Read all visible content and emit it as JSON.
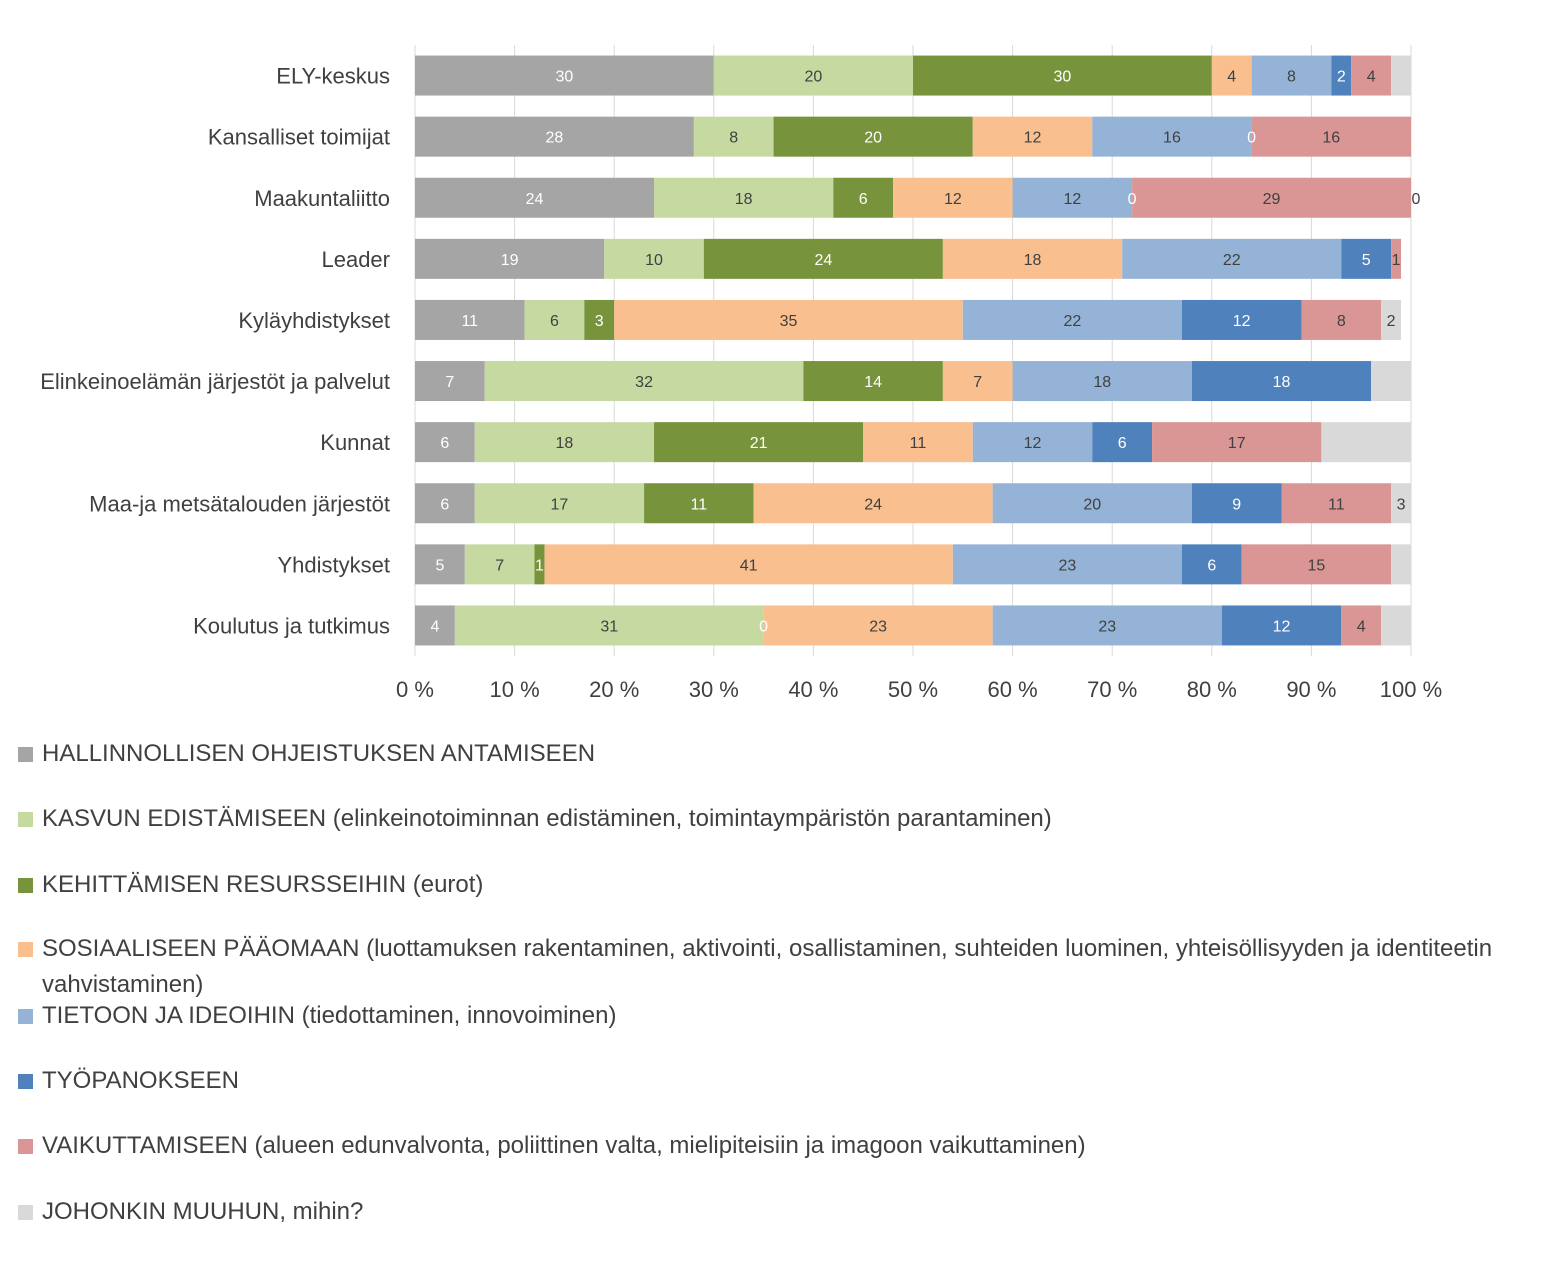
{
  "chart_data": {
    "type": "bar",
    "orientation": "horizontal",
    "stacked": "percent",
    "categories": [
      "ELY-keskus",
      "Kansalliset toimijat",
      "Maakuntaliitto",
      "Leader",
      "Kyläyhdistykset",
      "Elinkeinoelämän järjestöt ja palvelut",
      "Kunnat",
      "Maa-ja metsätalouden järjestöt",
      "Yhdistykset",
      "Koulutus ja tutkimus"
    ],
    "series": [
      {
        "name": "HALLINNOLLISEN OHJEISTUKSEN ANTAMISEEN",
        "color": "#a5a5a5",
        "label_color": "#ffffff",
        "values": [
          30,
          28,
          24,
          19,
          11,
          7,
          6,
          6,
          5,
          4
        ],
        "labels": [
          "30",
          "28",
          "24",
          "19",
          "11",
          "7",
          "6",
          "6",
          "5",
          "4"
        ]
      },
      {
        "name": "KASVUN EDISTÄMISEEN (elinkeinotoiminnan edistäminen, toimintaympäristön parantaminen)",
        "color": "#c5d9a0",
        "label_color": "#404040",
        "values": [
          20,
          8,
          18,
          10,
          6,
          32,
          18,
          17,
          7,
          31
        ],
        "labels": [
          "20",
          "8",
          "18",
          "10",
          "6",
          "32",
          "18",
          "17",
          "7",
          "31"
        ]
      },
      {
        "name": "KEHITTÄMISEN RESURSSEIHIN (eurot)",
        "color": "#77933c",
        "label_color": "#ffffff",
        "values": [
          30,
          20,
          6,
          24,
          3,
          14,
          21,
          11,
          1,
          0
        ],
        "labels": [
          "30",
          "20",
          "6",
          "24",
          "3",
          "14",
          "21",
          "11",
          "1",
          "0"
        ]
      },
      {
        "name": "SOSIAALISEEN PÄÄOMAAN (luottamuksen rakentaminen, aktivointi, osallistaminen, suhteiden luominen, yhteisöllisyyden ja identiteetin vahvistaminen)",
        "color": "#f9bf8f",
        "label_color": "#404040",
        "values": [
          4,
          12,
          12,
          18,
          35,
          7,
          11,
          24,
          41,
          23
        ],
        "labels": [
          "4",
          "12",
          "12",
          "18",
          "35",
          "7",
          "11",
          "24",
          "41",
          "23"
        ]
      },
      {
        "name": "TIETOON JA IDEOIHIN (tiedottaminen, innovoiminen)",
        "color": "#95b3d7",
        "label_color": "#404040",
        "values": [
          8,
          16,
          12,
          22,
          22,
          18,
          12,
          20,
          23,
          23
        ],
        "labels": [
          "8",
          "16",
          "12",
          "22",
          "22",
          "18",
          "12",
          "20",
          "23",
          "23"
        ]
      },
      {
        "name": "TYÖPANOKSEEN",
        "color": "#4f81bd",
        "label_color": "#ffffff",
        "values": [
          2,
          0,
          0,
          5,
          12,
          18,
          6,
          9,
          6,
          12
        ],
        "labels": [
          "2",
          "0",
          "0",
          "5",
          "12",
          "18",
          "6",
          "9",
          "6",
          "12"
        ]
      },
      {
        "name": "VAIKUTTAMISEEN (alueen edunvalvonta, poliittinen valta, mielipiteisiin ja imagoon vaikuttaminen)",
        "color": "#d99694",
        "label_color": "#404040",
        "values": [
          4,
          16,
          29,
          1,
          8,
          0,
          17,
          11,
          15,
          4
        ],
        "labels": [
          "4",
          "16",
          "29",
          "1",
          "8",
          "",
          "17",
          "11",
          "15",
          "4"
        ]
      },
      {
        "name": "JOHONKIN MUUHUN, mihin?",
        "color": "#d9d9d9",
        "label_color": "#404040",
        "values": [
          2,
          0,
          0,
          0,
          2,
          4,
          9,
          3,
          3,
          4
        ],
        "labels": [
          "",
          "",
          "0",
          "",
          "2",
          "",
          "",
          "3",
          "",
          ""
        ]
      }
    ],
    "xlim": [
      0,
      100
    ],
    "x_ticks": [
      "0 %",
      "10 %",
      "20 %",
      "30 %",
      "40 %",
      "50 %",
      "60 %",
      "70 %",
      "80 %",
      "90 %",
      "100 %"
    ],
    "grid": true,
    "legend_position": "bottom",
    "title": "",
    "xlabel": "",
    "ylabel": ""
  },
  "legend": {
    "items": [
      "HALLINNOLLISEN OHJEISTUKSEN ANTAMISEEN",
      "KASVUN EDISTÄMISEEN (elinkeinotoiminnan edistäminen, toimintaympäristön parantaminen)",
      "KEHITTÄMISEN RESURSSEIHIN (eurot)",
      "SOSIAALISEEN PÄÄOMAAN (luottamuksen rakentaminen, aktivointi, osallistaminen, suhteiden luominen, yhteisöllisyyden ja identiteetin vahvistaminen)",
      "TIETOON JA IDEOIHIN (tiedottaminen, innovoiminen)",
      "TYÖPANOKSEEN",
      "VAIKUTTAMISEEN (alueen edunvalvonta, poliittinen valta, mielipiteisiin ja imagoon vaikuttaminen)",
      "JOHONKIN MUUHUN, mihin?"
    ]
  }
}
